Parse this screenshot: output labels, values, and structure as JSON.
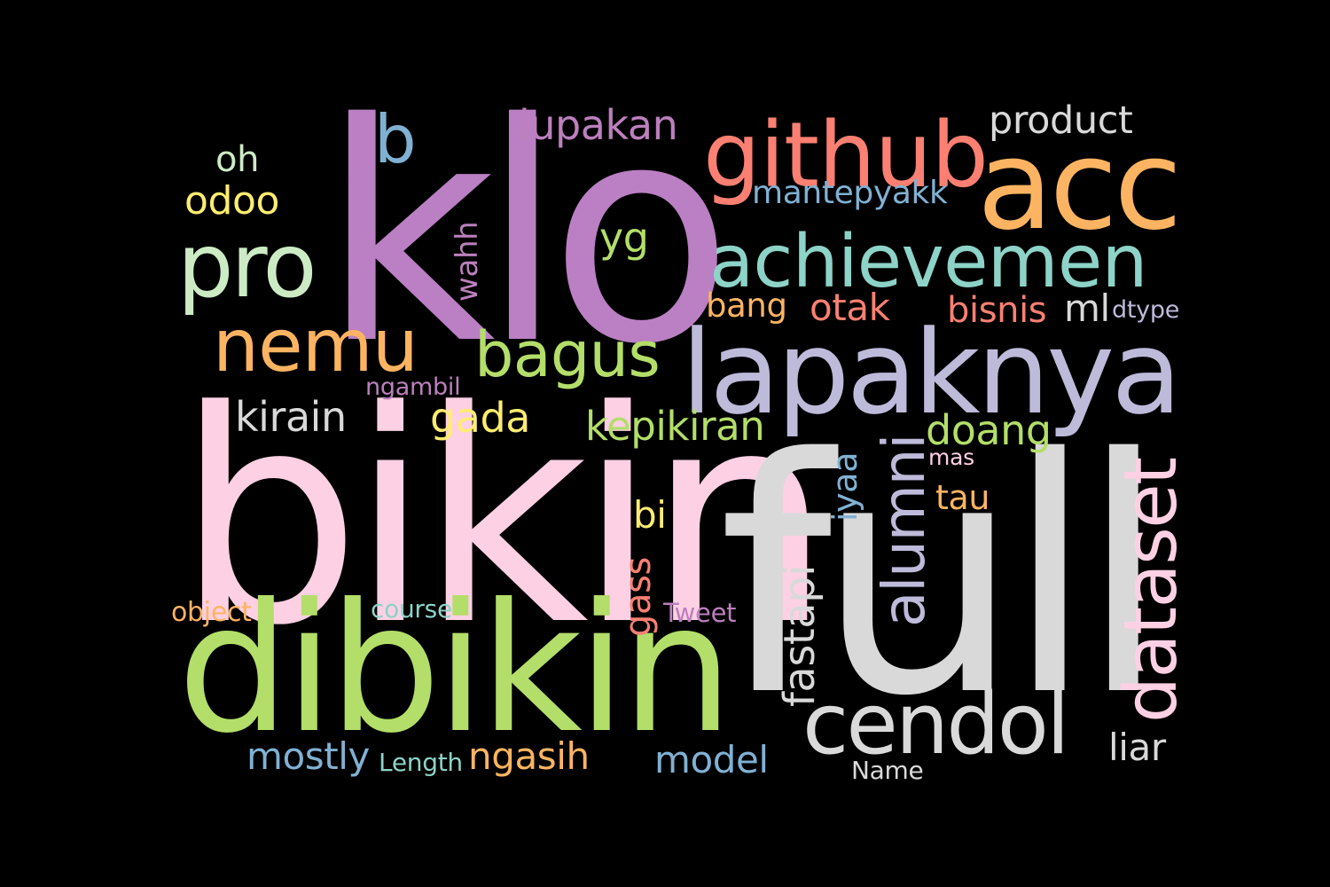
{
  "background": "#000000",
  "words": {
    "klo": {
      "text": "klo",
      "color": "#BB7FC4"
    },
    "bikin": {
      "text": "bikin",
      "color": "#FDD0E4"
    },
    "full": {
      "text": "full",
      "color": "#D9D9D9"
    },
    "dibikin": {
      "text": "dibikin",
      "color": "#B3DE69"
    },
    "lapaknya": {
      "text": "lapaknya",
      "color": "#BEBADA"
    },
    "github": {
      "text": "github",
      "color": "#FB8072"
    },
    "acc": {
      "text": "acc",
      "color": "#FDB462"
    },
    "achievemen": {
      "text": "achievemen",
      "color": "#8DD3C7"
    },
    "pro": {
      "text": "pro",
      "color": "#CCEBC5"
    },
    "nemu": {
      "text": "nemu",
      "color": "#FDB462"
    },
    "bagus": {
      "text": "bagus",
      "color": "#B3DE69"
    },
    "cendol": {
      "text": "cendol",
      "color": "#D9D9D9"
    },
    "b": {
      "text": "b",
      "color": "#80B1D3"
    },
    "lupakan": {
      "text": "lupakan",
      "color": "#BC80BD"
    },
    "product": {
      "text": "product",
      "color": "#D9D9D9"
    },
    "oh": {
      "text": "oh",
      "color": "#CCEBC5"
    },
    "odoo": {
      "text": "odoo",
      "color": "#FFED6F"
    },
    "mantepyakk": {
      "text": "mantepyakk",
      "color": "#80B1D3"
    },
    "yg": {
      "text": "yg",
      "color": "#B3DE69"
    },
    "wahh": {
      "text": "wahh",
      "color": "#BC80BD"
    },
    "bang": {
      "text": "bang",
      "color": "#FDB462"
    },
    "otak": {
      "text": "otak",
      "color": "#FB8072"
    },
    "bisnis": {
      "text": "bisnis",
      "color": "#FB8072"
    },
    "ml": {
      "text": "ml",
      "color": "#D9D9D9"
    },
    "dtype": {
      "text": "dtype",
      "color": "#BEBADA"
    },
    "ngambil": {
      "text": "ngambil",
      "color": "#BC80BD"
    },
    "kirain": {
      "text": "kirain",
      "color": "#D9D9D9"
    },
    "gada": {
      "text": "gada",
      "color": "#FFED6F"
    },
    "kepikiran": {
      "text": "kepikiran",
      "color": "#B3DE69"
    },
    "doang": {
      "text": "doang",
      "color": "#B3DE69"
    },
    "mas": {
      "text": "mas",
      "color": "#FDD0E4"
    },
    "tau": {
      "text": "tau",
      "color": "#FDB462"
    },
    "iyaa": {
      "text": "iyaa",
      "color": "#80B1D3"
    },
    "alumni": {
      "text": "alumni",
      "color": "#BEBADA"
    },
    "dataset": {
      "text": "dataset",
      "color": "#FDD0E4"
    },
    "bi": {
      "text": "bi",
      "color": "#FFED6F"
    },
    "gass": {
      "text": "gass",
      "color": "#FB8072"
    },
    "fastapi": {
      "text": "fastapi",
      "color": "#D9D9D9"
    },
    "object": {
      "text": "object",
      "color": "#FDB462"
    },
    "course": {
      "text": "course",
      "color": "#8DD3C7"
    },
    "tweet": {
      "text": "Tweet",
      "color": "#BC80BD"
    },
    "mostly": {
      "text": "mostly",
      "color": "#80B1D3"
    },
    "length": {
      "text": "Length",
      "color": "#8DD3C7"
    },
    "ngasih": {
      "text": "ngasih",
      "color": "#FDB462"
    },
    "model": {
      "text": "model",
      "color": "#80B1D3"
    },
    "liar": {
      "text": "liar",
      "color": "#D9D9D9"
    },
    "name": {
      "text": "Name",
      "color": "#D9D9D9"
    }
  }
}
